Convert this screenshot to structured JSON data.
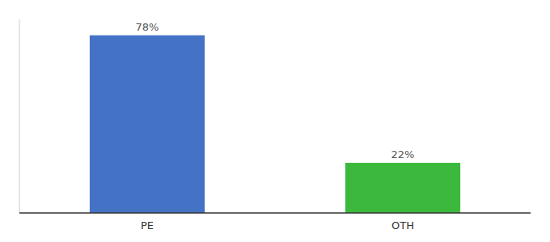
{
  "chart_data": {
    "type": "bar",
    "categories": [
      "PE",
      "OTH"
    ],
    "values": [
      78,
      22
    ],
    "value_labels": [
      "78%",
      "22%"
    ],
    "colors": [
      "#4472C4",
      "#3CB93C"
    ],
    "ylim": [
      0,
      85
    ],
    "data_labels": true,
    "tick_labels": "x"
  }
}
